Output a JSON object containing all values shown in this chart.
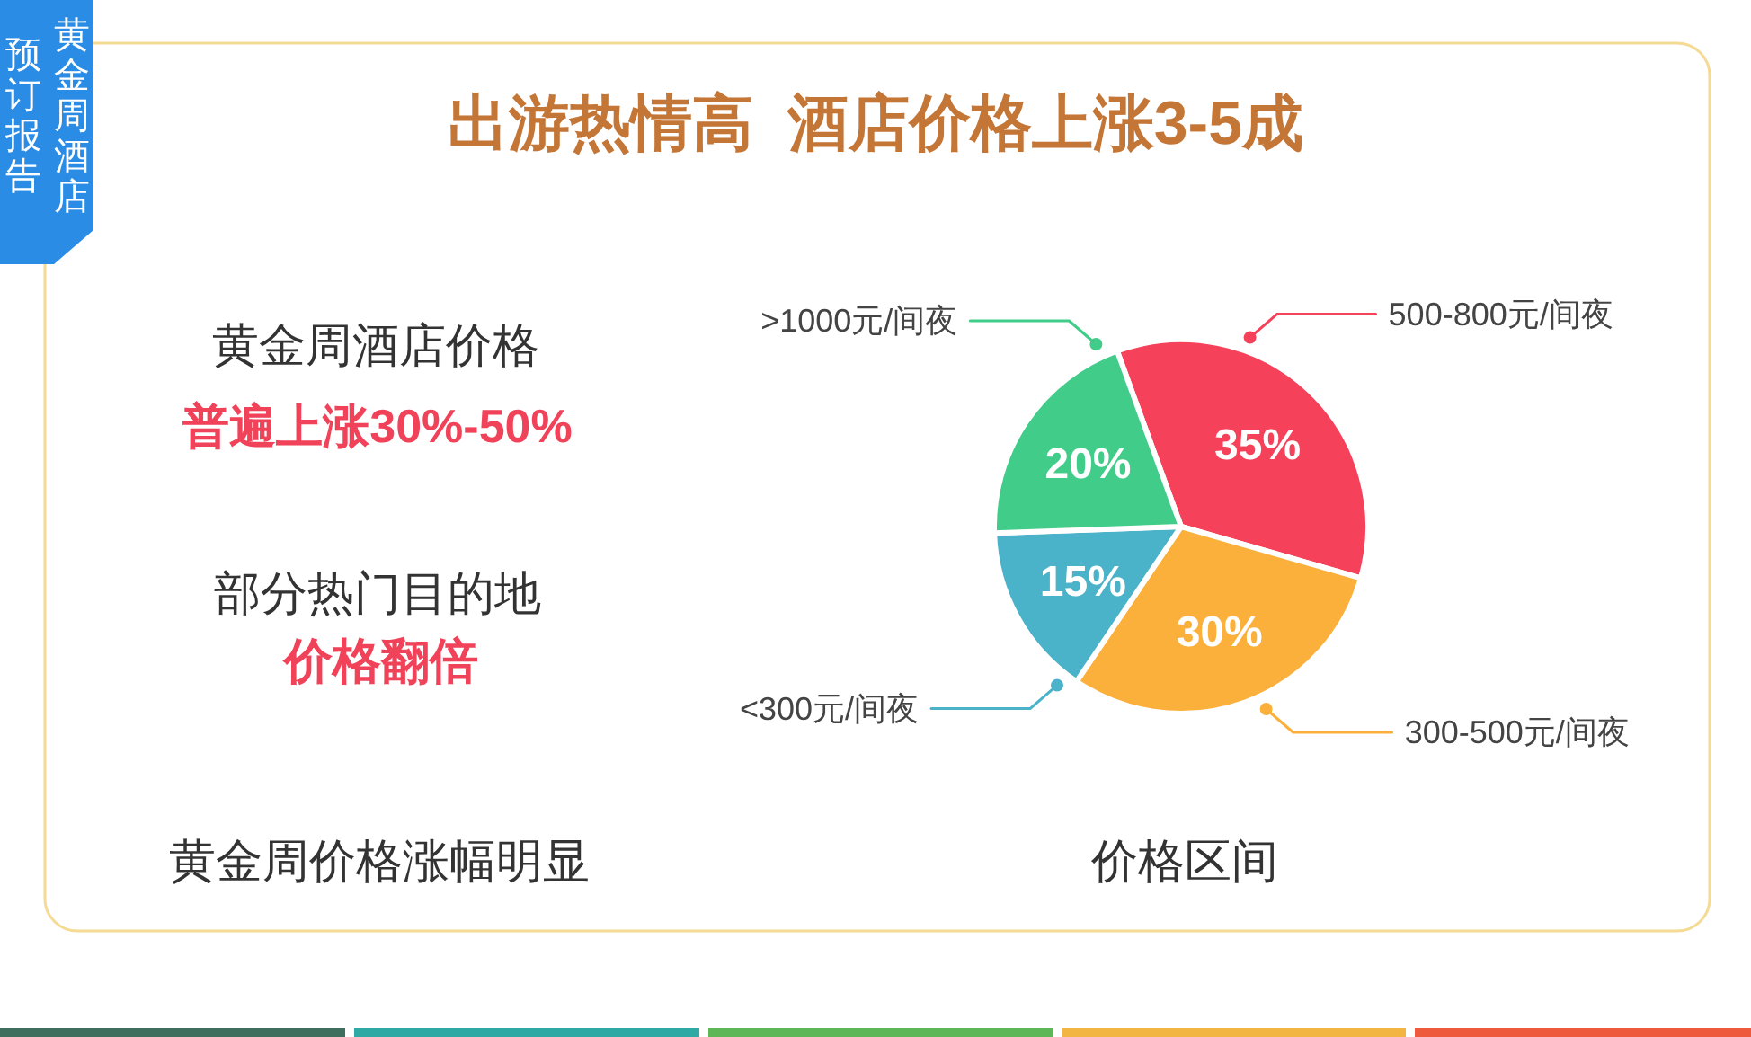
{
  "chart_data": {
    "type": "pie",
    "title": "出游热情高  酒店价格上涨3-5成",
    "categories": [
      "500-800元/间夜",
      "300-500元/间夜",
      "<300元/间夜",
      ">1000元/间夜"
    ],
    "values": [
      35,
      30,
      15,
      20
    ],
    "colors": [
      "#f5415a",
      "#fcb03c",
      "#4ab2c9",
      "#41cd89"
    ],
    "value_labels": [
      "35%",
      "30%",
      "15%",
      "20%"
    ],
    "xlabel": "价格区间",
    "annotations": [
      "黄金周酒店",
      "预订报告",
      "黄金周酒店价格",
      "普遍上涨30%-50%",
      "部分热门目的地",
      "价格翻倍",
      "黄金周价格涨幅明显"
    ]
  }
}
